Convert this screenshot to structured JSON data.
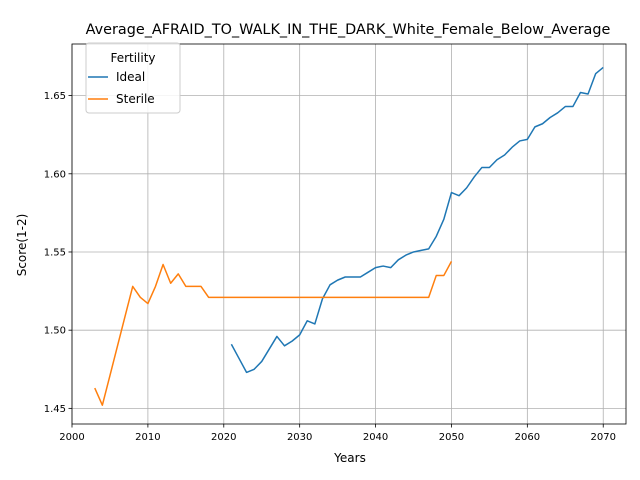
{
  "chart_data": {
    "type": "line",
    "title": "Average_AFRAID_TO_WALK_IN_THE_DARK_White_Female_Below_Average",
    "xlabel": "Years",
    "ylabel": "Score(1-2)",
    "xlim": [
      2000,
      2073
    ],
    "ylim": [
      1.44,
      1.683
    ],
    "xticks": [
      2000,
      2010,
      2020,
      2030,
      2040,
      2050,
      2060,
      2070
    ],
    "xtick_labels": [
      "2000",
      "2010",
      "2020",
      "2030",
      "2040",
      "2050",
      "2060",
      "2070"
    ],
    "yticks": [
      1.45,
      1.5,
      1.55,
      1.6,
      1.65
    ],
    "ytick_labels": [
      "1.45",
      "1.50",
      "1.55",
      "1.60",
      "1.65"
    ],
    "grid": true,
    "legend": {
      "title": "Fertility",
      "position": "top-left"
    },
    "series": [
      {
        "name": "Ideal",
        "color": "#1f77b4",
        "x": [
          2021,
          2022,
          2023,
          2024,
          2025,
          2026,
          2027,
          2028,
          2029,
          2030,
          2031,
          2032,
          2033,
          2034,
          2035,
          2036,
          2037,
          2038,
          2039,
          2040,
          2041,
          2042,
          2043,
          2044,
          2045,
          2046,
          2047,
          2048,
          2049,
          2050,
          2051,
          2052,
          2053,
          2054,
          2055,
          2056,
          2057,
          2058,
          2059,
          2060,
          2061,
          2062,
          2063,
          2064,
          2065,
          2066,
          2067,
          2068,
          2069,
          2070
        ],
        "y": [
          1.491,
          1.482,
          1.473,
          1.475,
          1.48,
          1.488,
          1.496,
          1.49,
          1.493,
          1.497,
          1.506,
          1.504,
          1.52,
          1.529,
          1.532,
          1.534,
          1.534,
          1.534,
          1.537,
          1.54,
          1.541,
          1.54,
          1.545,
          1.548,
          1.55,
          1.551,
          1.552,
          1.56,
          1.571,
          1.588,
          1.586,
          1.591,
          1.598,
          1.604,
          1.604,
          1.609,
          1.612,
          1.617,
          1.621,
          1.622,
          1.63,
          1.632,
          1.636,
          1.639,
          1.643,
          1.643,
          1.652,
          1.651,
          1.664,
          1.668
        ]
      },
      {
        "name": "Sterile",
        "color": "#ff7f0e",
        "x": [
          2003,
          2004,
          2005,
          2006,
          2007,
          2008,
          2009,
          2010,
          2011,
          2012,
          2013,
          2014,
          2015,
          2016,
          2017,
          2018,
          2019,
          2020,
          2021,
          2022,
          2023,
          2024,
          2025,
          2026,
          2027,
          2028,
          2029,
          2030,
          2031,
          2032,
          2033,
          2034,
          2035,
          2036,
          2037,
          2038,
          2039,
          2040,
          2041,
          2042,
          2043,
          2044,
          2045,
          2046,
          2047,
          2048,
          2049,
          2050
        ],
        "y": [
          1.463,
          1.452,
          1.471,
          1.49,
          1.509,
          1.528,
          1.521,
          1.517,
          1.528,
          1.542,
          1.53,
          1.536,
          1.528,
          1.528,
          1.528,
          1.521,
          1.521,
          1.521,
          1.521,
          1.521,
          1.521,
          1.521,
          1.521,
          1.521,
          1.521,
          1.521,
          1.521,
          1.521,
          1.521,
          1.521,
          1.521,
          1.521,
          1.521,
          1.521,
          1.521,
          1.521,
          1.521,
          1.521,
          1.521,
          1.521,
          1.521,
          1.521,
          1.521,
          1.521,
          1.521,
          1.535,
          1.535,
          1.544
        ]
      }
    ]
  }
}
